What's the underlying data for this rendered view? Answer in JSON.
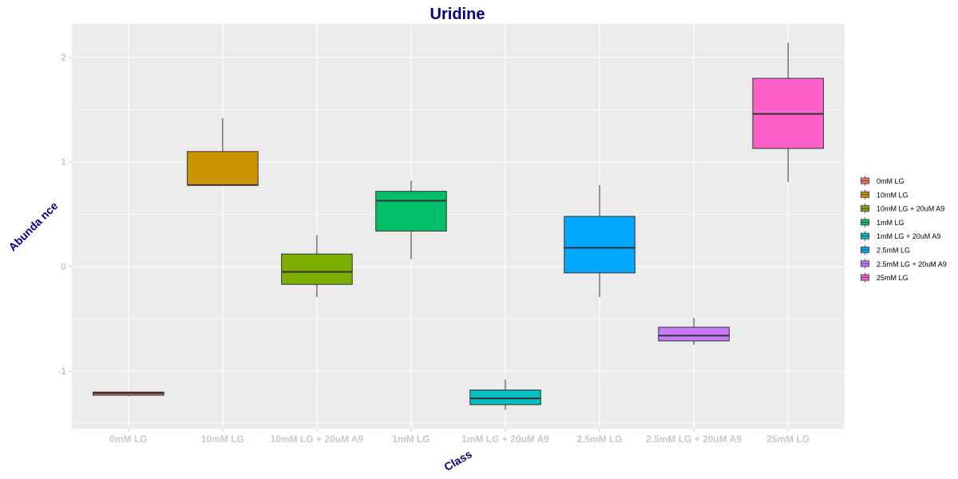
{
  "chart_data": {
    "type": "boxplot",
    "title": "Uridine",
    "xlabel": "Class",
    "ylabel": "Abunda nce",
    "ylim": [
      -1.55,
      2.32
    ],
    "yticks": [
      -1,
      0,
      1,
      2
    ],
    "grid": true,
    "legend_position": "right",
    "categories": [
      "0mM LG",
      "10mM LG",
      "10mM LG + 20uM A9",
      "1mM LG",
      "1mM LG + 20uM A9",
      "2.5mM LG",
      "2.5mM LG + 20uM A9",
      "25mM LG"
    ],
    "colors": [
      "#F8766D",
      "#CD9600",
      "#7CAE00",
      "#00BE67",
      "#00BFC4",
      "#00A9FF",
      "#C77CFF",
      "#FF61CC"
    ],
    "boxes": [
      {
        "name": "0mM LG",
        "whisker_low": -1.24,
        "q1": -1.23,
        "median": -1.21,
        "q3": -1.2,
        "whisker_high": -1.2
      },
      {
        "name": "10mM LG",
        "whisker_low": 0.78,
        "q1": 0.78,
        "median": 0.78,
        "q3": 1.1,
        "whisker_high": 1.42
      },
      {
        "name": "10mM LG + 20uM A9",
        "whisker_low": -0.29,
        "q1": -0.17,
        "median": -0.05,
        "q3": 0.12,
        "whisker_high": 0.3
      },
      {
        "name": "1mM LG",
        "whisker_low": 0.07,
        "q1": 0.34,
        "median": 0.63,
        "q3": 0.72,
        "whisker_high": 0.82
      },
      {
        "name": "1mM LG + 20uM A9",
        "whisker_low": -1.37,
        "q1": -1.32,
        "median": -1.26,
        "q3": -1.18,
        "whisker_high": -1.08
      },
      {
        "name": "2.5mM LG",
        "whisker_low": -0.29,
        "q1": -0.06,
        "median": 0.18,
        "q3": 0.48,
        "whisker_high": 0.78
      },
      {
        "name": "2.5mM LG + 20uM A9",
        "whisker_low": -0.75,
        "q1": -0.71,
        "median": -0.66,
        "q3": -0.58,
        "whisker_high": -0.49
      },
      {
        "name": "25mM LG",
        "whisker_low": 0.81,
        "q1": 1.13,
        "median": 1.46,
        "q3": 1.8,
        "whisker_high": 2.14
      }
    ]
  }
}
